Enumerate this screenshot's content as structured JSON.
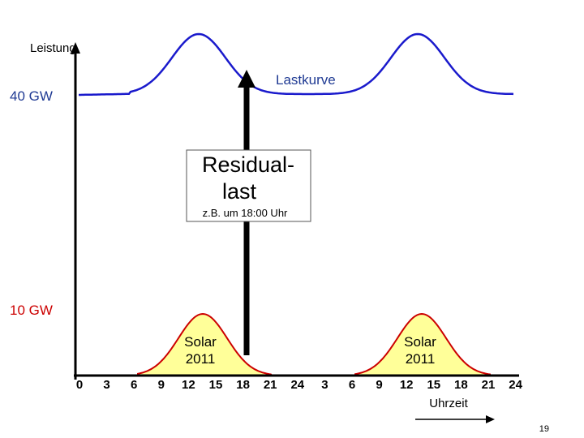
{
  "y_axis_label": "Leistung",
  "level_high_label": "40 GW",
  "level_low_label": "10 GW",
  "load_curve_label": "Lastkurve",
  "residual_box": {
    "line1": "Residual-",
    "line2": "last",
    "note": "z.B. um 18:00 Uhr"
  },
  "solar_labels": [
    {
      "line1": "Solar",
      "line2": "2011"
    },
    {
      "line1": "Solar",
      "line2": "2011"
    }
  ],
  "x_ticks": [
    "0",
    "3",
    "6",
    "9",
    "12",
    "15",
    "18",
    "21",
    "24",
    "3",
    "6",
    "9",
    "12",
    "15",
    "18",
    "21",
    "24"
  ],
  "x_axis_label": "Uhrzeit",
  "page_number": "19",
  "colors": {
    "load_curve": "#1a1acc",
    "solar_fill": "#ffff99",
    "solar_stroke": "#cc0000",
    "label_blue": "#1f3a93",
    "label_red": "#cc0000",
    "axis": "#000000"
  }
}
